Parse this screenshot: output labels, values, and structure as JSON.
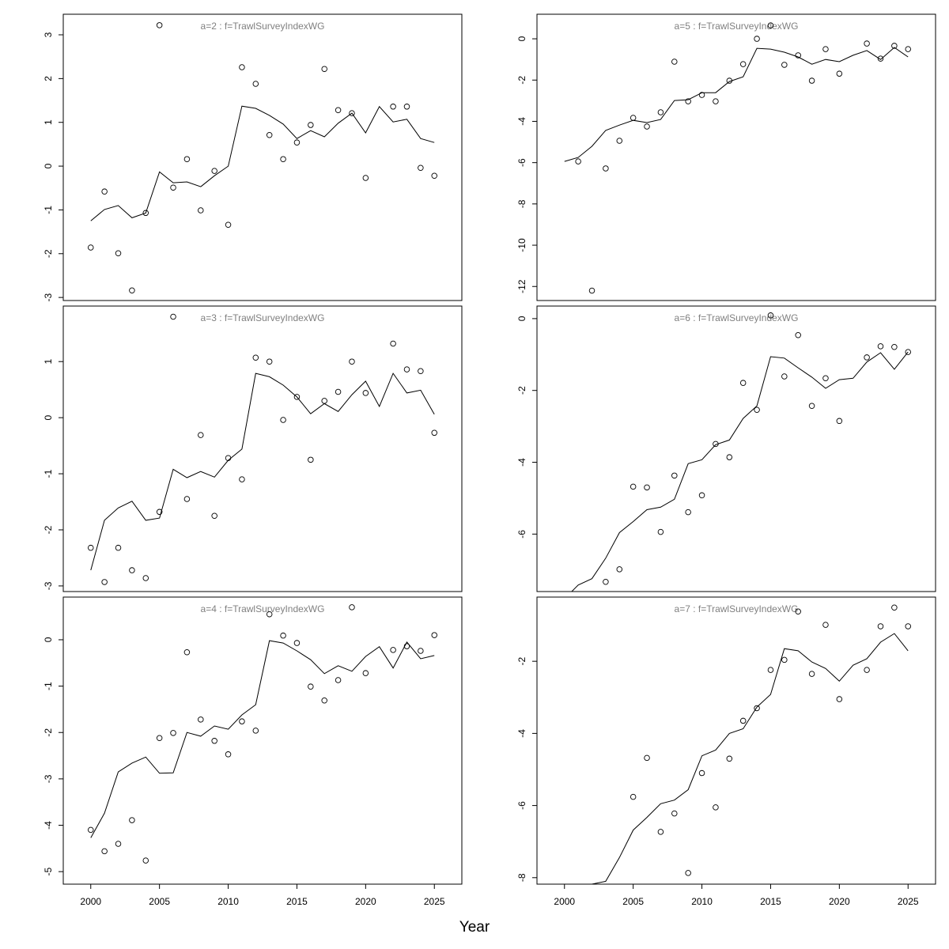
{
  "chart_data": [
    {
      "type": "scatter+line",
      "title": "a=2 : f=TrawlSurveyIndexWG",
      "x": [
        2000,
        2001,
        2002,
        2003,
        2004,
        2005,
        2006,
        2007,
        2008,
        2009,
        2010,
        2011,
        2012,
        2013,
        2014,
        2015,
        2016,
        2017,
        2018,
        2019,
        2020,
        2021,
        2022,
        2023,
        2024,
        2025
      ],
      "observed": [
        -1.86,
        -0.58,
        -1.99,
        -2.84,
        -1.07,
        3.22,
        -0.49,
        0.16,
        -1.01,
        -0.11,
        -1.34,
        2.26,
        1.88,
        0.71,
        0.16,
        0.54,
        0.94,
        2.22,
        1.28,
        1.21,
        -0.27,
        null,
        1.36,
        1.36,
        -0.04,
        -0.22
      ],
      "fitted": [
        -1.25,
        -0.99,
        -0.9,
        -1.18,
        -1.07,
        -0.13,
        -0.38,
        -0.36,
        -0.47,
        -0.22,
        0,
        1.37,
        1.32,
        1.16,
        0.96,
        0.63,
        0.81,
        0.67,
        0.98,
        1.21,
        0.76,
        1.36,
        1.01,
        1.07,
        0.63,
        0.54
      ],
      "yticks": [
        -3,
        -2,
        -1,
        0,
        1,
        2,
        3
      ],
      "ylim": [
        -3.07,
        3.47
      ],
      "xlim": [
        1998,
        2027
      ],
      "xticks": []
    },
    {
      "type": "scatter+line",
      "title": "a=5 : f=TrawlSurveyIndexWG",
      "x": [
        2000,
        2001,
        2002,
        2003,
        2004,
        2005,
        2006,
        2007,
        2008,
        2009,
        2010,
        2011,
        2012,
        2013,
        2014,
        2015,
        2016,
        2017,
        2018,
        2019,
        2020,
        2021,
        2022,
        2023,
        2024,
        2025
      ],
      "observed": [
        null,
        -5.94,
        -12.2,
        -6.28,
        -4.94,
        -3.83,
        -4.25,
        -3.56,
        -1.11,
        -3.03,
        -2.72,
        -3.03,
        -2.03,
        -1.23,
        0,
        0.65,
        -1.26,
        -0.8,
        -2.03,
        -0.5,
        -1.69,
        null,
        -0.23,
        -0.96,
        -0.34,
        -0.5
      ],
      "fitted": [
        -5.94,
        -5.75,
        -5.21,
        -4.44,
        -4.18,
        -3.95,
        -4.06,
        -3.91,
        -2.99,
        -2.95,
        -2.61,
        -2.61,
        -2.07,
        -1.84,
        -0.46,
        -0.5,
        -0.65,
        -0.88,
        -1.23,
        -1.0,
        -1.11,
        -0.8,
        -0.57,
        -1.0,
        -0.42,
        -0.88
      ],
      "yticks": [
        -12,
        -10,
        -8,
        -6,
        -4,
        -2,
        0
      ],
      "ylim": [
        -12.68,
        1.19
      ],
      "xlim": [
        1998,
        2027
      ],
      "xticks": []
    },
    {
      "type": "scatter+line",
      "title": "a=3 : f=TrawlSurveyIndexWG",
      "x": [
        2000,
        2001,
        2002,
        2003,
        2004,
        2005,
        2006,
        2007,
        2008,
        2009,
        2010,
        2011,
        2012,
        2013,
        2014,
        2015,
        2016,
        2017,
        2018,
        2019,
        2020,
        2021,
        2022,
        2023,
        2024,
        2025
      ],
      "observed": [
        -2.32,
        -2.93,
        -2.32,
        -2.72,
        -2.86,
        -1.68,
        1.8,
        -1.45,
        -0.31,
        -1.75,
        -0.72,
        -1.1,
        1.07,
        1.0,
        -0.04,
        0.37,
        -0.75,
        0.3,
        0.46,
        1.0,
        0.44,
        null,
        1.32,
        0.86,
        0.83,
        -0.27
      ],
      "fitted": [
        -2.72,
        -1.83,
        -1.61,
        -1.49,
        -1.83,
        -1.79,
        -0.92,
        -1.07,
        -0.96,
        -1.06,
        -0.76,
        -0.56,
        0.79,
        0.73,
        0.58,
        0.37,
        0.07,
        0.25,
        0.11,
        0.41,
        0.65,
        0.2,
        0.79,
        0.44,
        0.49,
        0.06
      ],
      "yticks": [
        -3,
        -2,
        -1,
        0,
        1
      ],
      "ylim": [
        -3.1,
        1.99
      ],
      "xlim": [
        1998,
        2027
      ],
      "xticks": []
    },
    {
      "type": "scatter+line",
      "title": "a=6 : f=TrawlSurveyIndexWG",
      "x": [
        2000,
        2001,
        2002,
        2003,
        2004,
        2005,
        2006,
        2007,
        2008,
        2009,
        2010,
        2011,
        2012,
        2013,
        2014,
        2015,
        2016,
        2017,
        2018,
        2019,
        2020,
        2021,
        2022,
        2023,
        2024,
        2025
      ],
      "observed": [
        null,
        null,
        null,
        -7.33,
        -6.98,
        -4.68,
        -4.7,
        -5.94,
        -4.37,
        -5.39,
        -4.92,
        -3.49,
        -3.86,
        -1.79,
        -2.54,
        0.09,
        -1.61,
        -0.46,
        -2.43,
        -1.66,
        -2.85,
        null,
        -1.08,
        -0.77,
        -0.79,
        -0.93
      ],
      "fitted": [
        -7.8,
        -7.42,
        -7.24,
        -6.67,
        -5.96,
        -5.65,
        -5.32,
        -5.25,
        -5.03,
        -4.04,
        -3.93,
        -3.51,
        -3.38,
        -2.78,
        -2.43,
        -1.06,
        -1.1,
        -1.37,
        -1.63,
        -1.94,
        -1.7,
        -1.66,
        -1.21,
        -0.95,
        -1.41,
        -0.93
      ],
      "yticks": [
        -6,
        -4,
        -2,
        0
      ],
      "ylim": [
        -7.6,
        0.35
      ],
      "xlim": [
        1998,
        2027
      ],
      "xticks": []
    },
    {
      "type": "scatter+line",
      "title": "a=4 : f=TrawlSurveyIndexWG",
      "x": [
        2000,
        2001,
        2002,
        2003,
        2004,
        2005,
        2006,
        2007,
        2008,
        2009,
        2010,
        2011,
        2012,
        2013,
        2014,
        2015,
        2016,
        2017,
        2018,
        2019,
        2020,
        2021,
        2022,
        2023,
        2024,
        2025
      ],
      "observed": [
        -4.1,
        -4.56,
        -4.4,
        -3.89,
        -4.76,
        -2.12,
        -2.01,
        -0.27,
        -1.72,
        -2.18,
        -2.47,
        -1.76,
        -1.96,
        0.55,
        0.09,
        -0.07,
        -1.01,
        -1.31,
        -0.87,
        0.7,
        -0.72,
        null,
        -0.22,
        -0.14,
        -0.24,
        0.1
      ],
      "fitted": [
        -4.27,
        -3.74,
        -2.85,
        -2.66,
        -2.53,
        -2.88,
        -2.87,
        -2.0,
        -2.08,
        -1.86,
        -1.93,
        -1.62,
        -1.4,
        -0.02,
        -0.07,
        -0.24,
        -0.43,
        -0.73,
        -0.56,
        -0.68,
        -0.36,
        -0.15,
        -0.61,
        -0.05,
        -0.41,
        -0.34
      ],
      "yticks": [
        -5,
        -4,
        -3,
        -2,
        -1,
        0
      ],
      "ylim": [
        -5.27,
        0.92
      ],
      "xlim": [
        1998,
        2027
      ],
      "xticks": [
        2000,
        2005,
        2010,
        2015,
        2020,
        2025
      ]
    },
    {
      "type": "scatter+line",
      "title": "a=7 : f=TrawlSurveyIndexWG",
      "x": [
        2000,
        2001,
        2002,
        2003,
        2004,
        2005,
        2006,
        2007,
        2008,
        2009,
        2010,
        2011,
        2012,
        2013,
        2014,
        2015,
        2016,
        2017,
        2018,
        2019,
        2020,
        2021,
        2022,
        2023,
        2024,
        2025
      ],
      "observed": [
        null,
        null,
        null,
        null,
        null,
        -5.76,
        -4.68,
        -6.73,
        -6.22,
        -7.87,
        -5.1,
        -6.05,
        -4.7,
        -3.65,
        -3.3,
        -2.24,
        -1.96,
        -0.62,
        -2.35,
        -0.99,
        -3.05,
        null,
        -2.24,
        -1.03,
        -0.51,
        -1.03
      ],
      "fitted": [
        -8.3,
        -8.3,
        -8.18,
        -8.1,
        -7.44,
        -6.68,
        -6.33,
        -5.95,
        -5.85,
        -5.56,
        -4.62,
        -4.46,
        -4.0,
        -3.87,
        -3.27,
        -2.92,
        -1.65,
        -1.71,
        -2.02,
        -2.2,
        -2.55,
        -2.11,
        -1.93,
        -1.47,
        -1.23,
        -1.71
      ],
      "yticks": [
        -8,
        -6,
        -4,
        -2
      ],
      "ylim": [
        -8.18,
        -0.22
      ],
      "xlim": [
        1998,
        2027
      ],
      "xticks": [
        2000,
        2005,
        2010,
        2015,
        2020,
        2025
      ]
    }
  ],
  "xlabel": "Year",
  "colors": {
    "title": "#808080",
    "line": "#000000",
    "points": "#000000"
  }
}
